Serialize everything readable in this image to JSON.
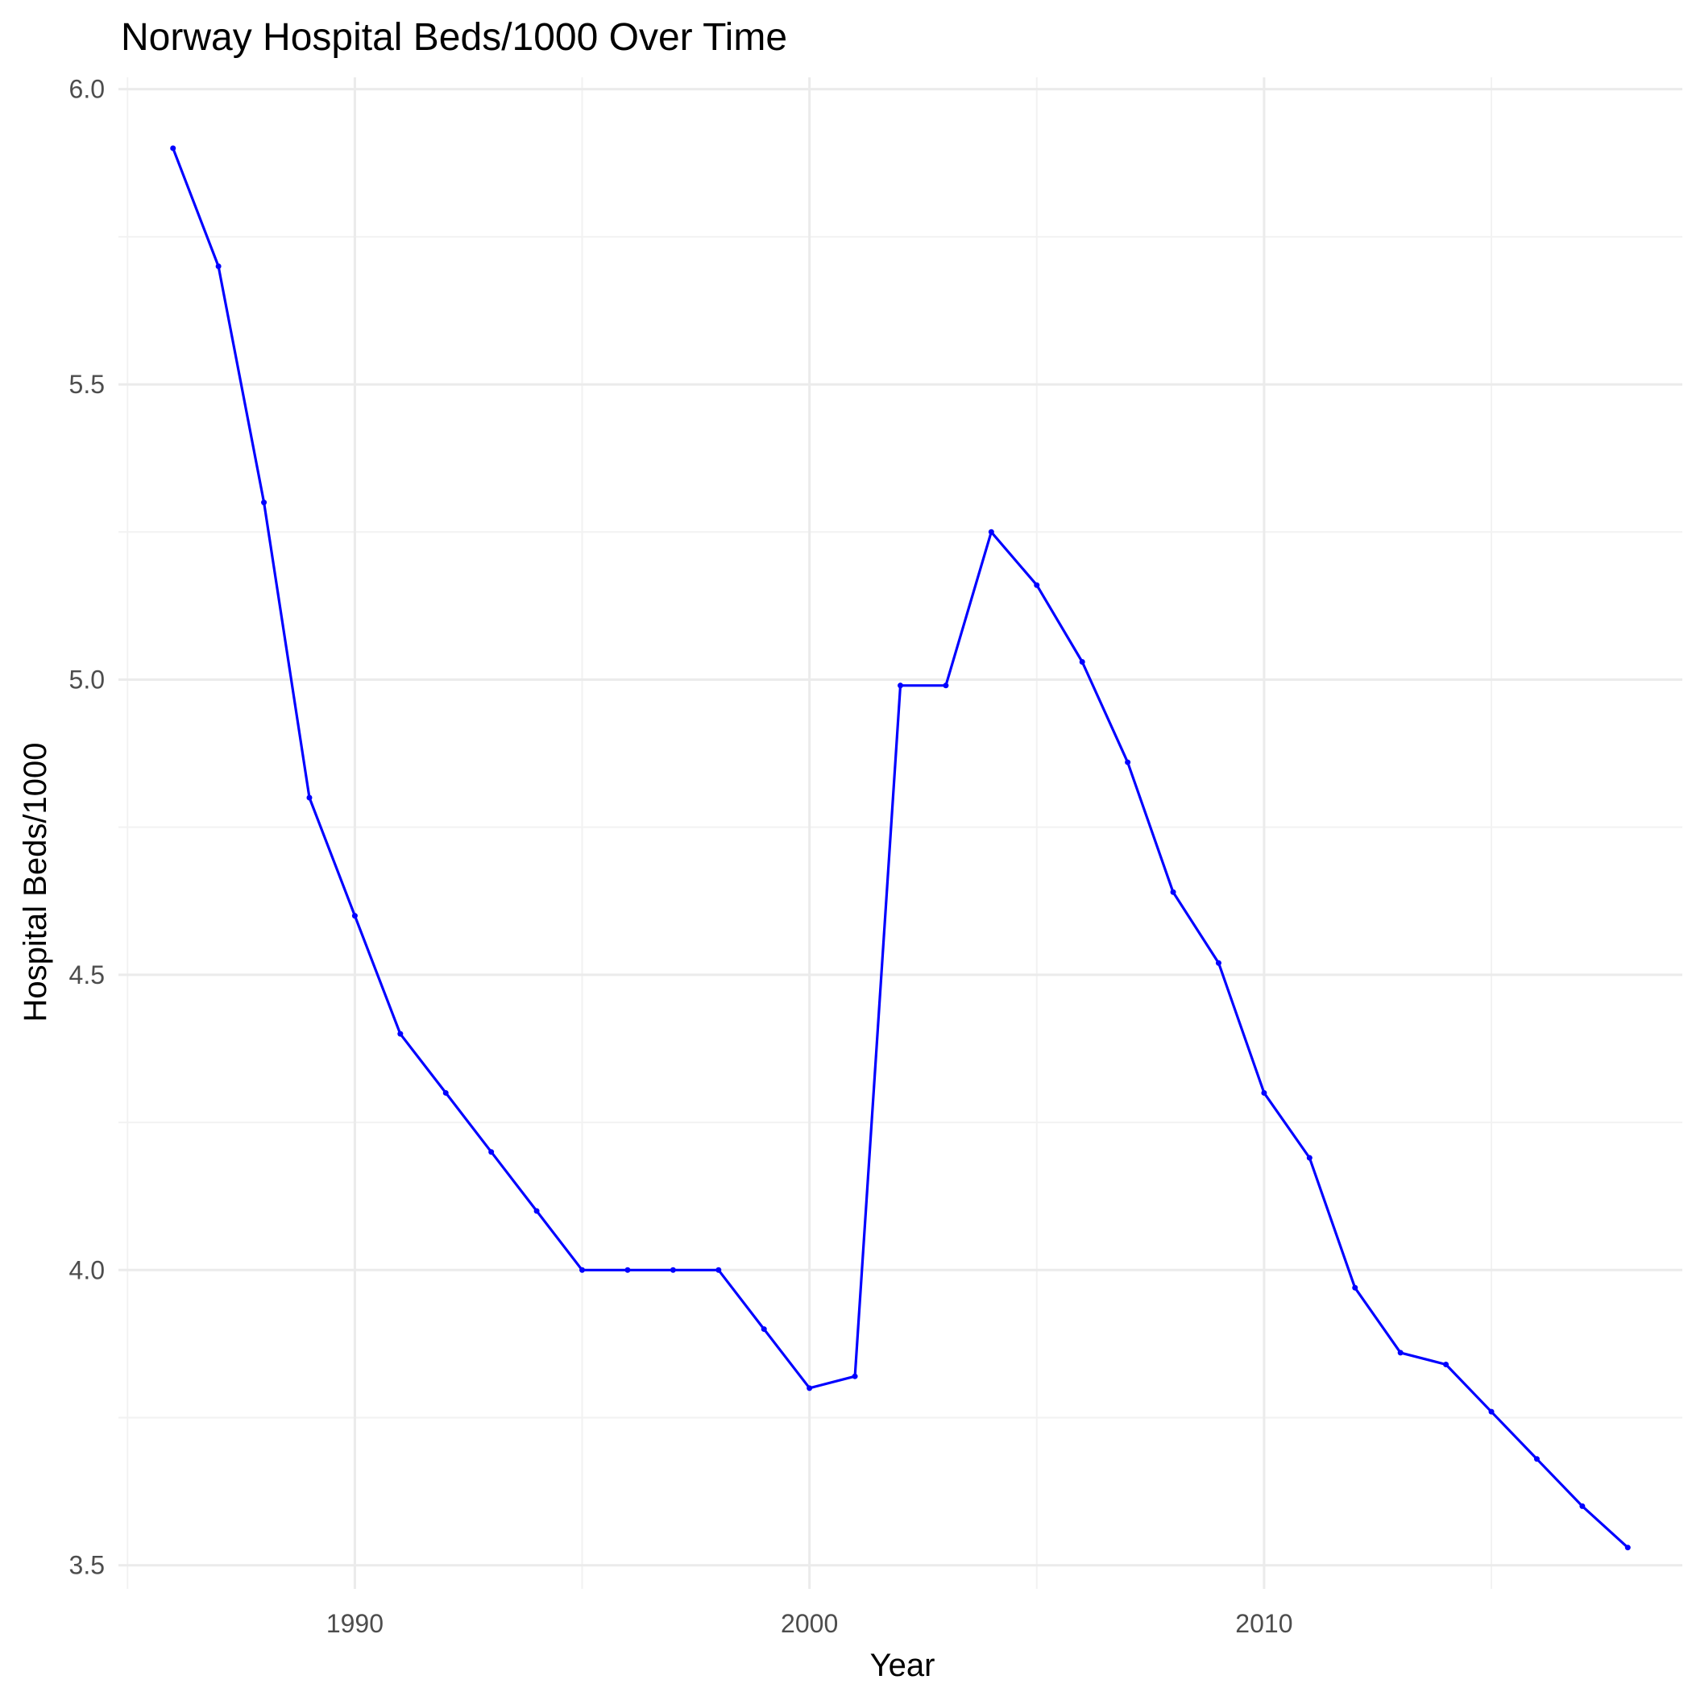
{
  "chart_data": {
    "type": "line",
    "title": "Norway Hospital Beds/1000 Over Time",
    "xlabel": "Year",
    "ylabel": "Hospital Beds/1000",
    "xlim": [
      1984.8,
      2019.2
    ],
    "ylim": [
      3.46,
      6.02
    ],
    "x_ticks": [
      1990,
      2000,
      2010
    ],
    "x_minor_ticks": [
      1985,
      1995,
      2005,
      2015
    ],
    "y_ticks": [
      3.5,
      4.0,
      4.5,
      5.0,
      5.5,
      6.0
    ],
    "y_tick_labels": [
      "3.5",
      "4.0",
      "4.5",
      "5.0",
      "5.5",
      "6.0"
    ],
    "y_minor_ticks": [
      3.75,
      4.25,
      4.75,
      5.25,
      5.75
    ],
    "grid": true,
    "legend": "none",
    "colors": {
      "line": "#0000ff",
      "point": "#0000ff",
      "grid_major": "#ebebeb",
      "grid_minor": "#f2f2f2"
    },
    "series": [
      {
        "x": [
          1986,
          1987,
          1988,
          1989,
          1990,
          1991,
          1992,
          1993,
          1994,
          1995,
          1996,
          1997,
          1998,
          1999,
          2000,
          2001,
          2002,
          2003,
          2004,
          2005,
          2006,
          2007,
          2008,
          2009,
          2010,
          2011,
          2012,
          2013,
          2014,
          2015,
          2016,
          2017,
          2018
        ],
        "values": [
          5.9,
          5.7,
          5.3,
          4.8,
          4.6,
          4.4,
          4.3,
          4.2,
          4.1,
          4.0,
          4.0,
          4.0,
          4.0,
          3.9,
          3.8,
          3.82,
          4.99,
          4.99,
          5.25,
          5.16,
          5.03,
          4.86,
          4.64,
          4.52,
          4.3,
          4.19,
          3.97,
          3.86,
          3.84,
          3.76,
          3.68,
          3.6,
          3.53
        ]
      }
    ]
  }
}
